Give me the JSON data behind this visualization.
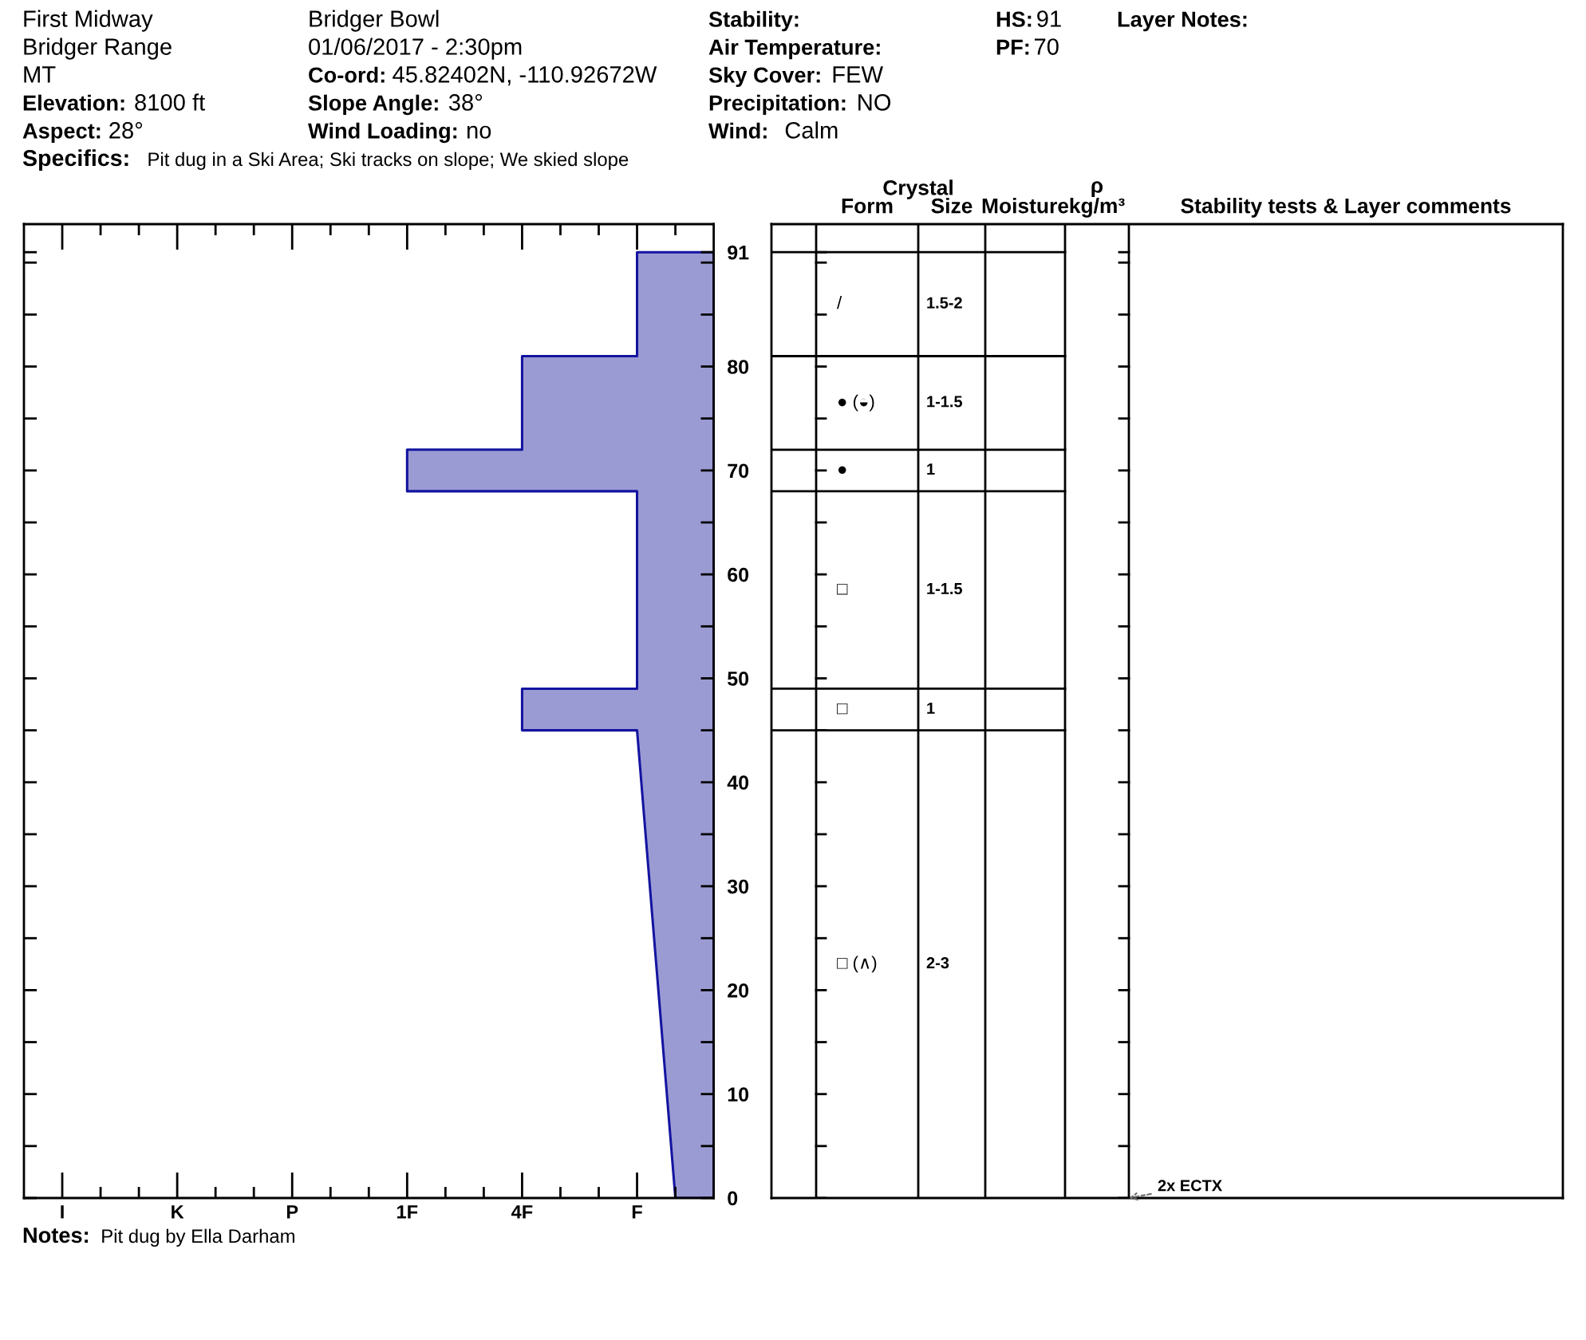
{
  "chart_data": [
    {
      "type": "area",
      "orientation": "horizontal",
      "series": [
        {
          "color": "#9b9bd4",
          "x": [
            91,
            91,
            81,
            81,
            72,
            72,
            68,
            68,
            49,
            49,
            45,
            45,
            0,
            0
          ],
          "values": [
            9,
            7,
            7,
            4,
            4,
            1,
            1,
            7,
            7,
            4,
            4,
            7,
            8,
            9
          ]
        }
      ],
      "xlim": [
        -9,
        9
      ],
      "xticks": [
        {
          "value": -8,
          "label": "I"
        },
        {
          "value": -7,
          "label": null
        },
        {
          "value": -6,
          "label": null
        },
        {
          "value": -5,
          "label": "K"
        },
        {
          "value": -4,
          "label": null
        },
        {
          "value": -3,
          "label": null
        },
        {
          "value": -2,
          "label": "P"
        },
        {
          "value": -1,
          "label": null
        },
        {
          "value": 0,
          "label": null
        },
        {
          "value": 1,
          "label": "1F"
        },
        {
          "value": 2,
          "label": null
        },
        {
          "value": 3,
          "label": null
        },
        {
          "value": 4,
          "label": "4F"
        },
        {
          "value": 5,
          "label": null
        },
        {
          "value": 6,
          "label": null
        },
        {
          "value": 7,
          "label": "F"
        },
        {
          "value": 8,
          "label": null
        }
      ],
      "ylim": [
        0,
        93.7
      ],
      "yticks": [
        0,
        {
          "value": 5,
          "label": null
        },
        10,
        {
          "value": 15,
          "label": null
        },
        20,
        {
          "value": 25,
          "label": null
        },
        30,
        {
          "value": 35,
          "label": null
        },
        40,
        {
          "value": 45,
          "label": null
        },
        50,
        {
          "value": 55,
          "label": null
        },
        60,
        {
          "value": 65,
          "label": null
        },
        70,
        {
          "value": 75,
          "label": null
        },
        80,
        {
          "value": 85,
          "label": null
        },
        {
          "value": 90,
          "label": null
        },
        91
      ],
      "annotations": [
        "First Midway",
        "Bridger Range",
        "MT",
        "Elevation:",
        "8100 ft",
        "Aspect:",
        "28°",
        "Specifics:",
        "Pit dug in a Ski Area; Ski tracks on slope; We skied slope",
        "Bridger Bowl",
        "01/06/2017 - 2:30pm",
        "Co-ord:",
        "45.82402N, -110.92672W",
        "Slope Angle:",
        "38°",
        "Wind Loading:",
        "no",
        "Stability:",
        "Air Temperature:",
        "Sky Cover:",
        "FEW",
        "Precipitation:",
        "NO",
        "Wind:",
        "Calm",
        "HS:",
        "91",
        "PF:",
        "70",
        "Layer Notes:",
        "Notes:",
        "Pit dug by Ella Darham"
      ]
    },
    {
      "type": "other",
      "title": "Crystal",
      "categories": [
        null,
        "Form",
        "Size",
        "Moisture",
        "ρ\nkg/m³",
        "Stability tests & Layer comments"
      ],
      "annotations": [
        {
          "text": "/",
          "x": "Form"
        },
        {
          "text": "1.5-2",
          "x": "Size"
        },
        {
          "text": "● (◒)",
          "x": "Form"
        },
        {
          "text": "1-1.5",
          "x": "Size"
        },
        {
          "text": "●",
          "x": "Form"
        },
        {
          "text": "1",
          "x": "Size"
        },
        {
          "text": "□",
          "x": "Form"
        },
        {
          "text": "1-1.5",
          "x": "Size"
        },
        {
          "text": "□",
          "x": "Form"
        },
        {
          "text": "1",
          "x": "Size"
        },
        {
          "text": "□ (∧)",
          "x": "Form"
        },
        {
          "text": "2-3",
          "x": "Size"
        },
        {
          "text": "2x ECTX",
          "x": "Stability tests & Layer comments"
        }
      ]
    }
  ]
}
